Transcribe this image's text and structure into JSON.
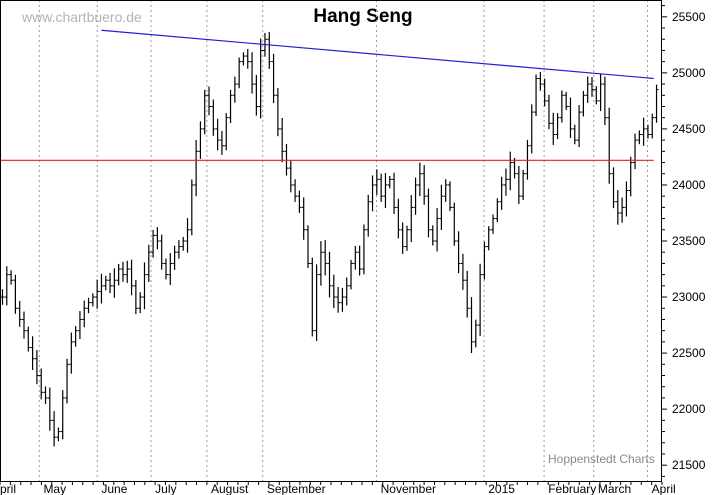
{
  "watermark": "www.chartbuero.de",
  "credit": "Hoppenstedt Charts",
  "colors": {
    "resistance": "#1f1fd6",
    "support": "#e02020",
    "bars": "#000000",
    "grid": "#9a9a9a"
  },
  "chart_data": {
    "type": "ohlc",
    "title": "Hang Seng",
    "ylim": [
      21350,
      25650
    ],
    "yticks": [
      21500,
      22000,
      22500,
      23000,
      23500,
      24000,
      24500,
      25000,
      25500
    ],
    "ytick_labels": [
      "21500",
      "22000",
      "22500",
      "23000",
      "23500",
      "24000",
      "24500",
      "25000",
      "25500"
    ],
    "xticks": [
      "pril",
      "May",
      "June",
      "July",
      "August",
      "September",
      "November",
      "2015",
      "February",
      "March",
      "April"
    ],
    "grid": true,
    "legend": "none",
    "ohlc_points": [
      [
        0,
        23000
      ],
      [
        1,
        23200
      ],
      [
        2,
        23150
      ],
      [
        3,
        22900
      ],
      [
        4,
        22800
      ],
      [
        5,
        22700
      ],
      [
        6,
        22550
      ],
      [
        7,
        22450
      ],
      [
        8,
        22300
      ],
      [
        9,
        22150
      ],
      [
        10,
        22100
      ],
      [
        11,
        21900
      ],
      [
        12,
        21750
      ],
      [
        13,
        21800
      ],
      [
        14,
        22100
      ],
      [
        15,
        22400
      ],
      [
        16,
        22600
      ],
      [
        17,
        22700
      ],
      [
        18,
        22800
      ],
      [
        19,
        22900
      ],
      [
        20,
        22950
      ],
      [
        21,
        23000
      ],
      [
        22,
        23050
      ],
      [
        23,
        23100
      ],
      [
        24,
        23150
      ],
      [
        25,
        23100
      ],
      [
        26,
        23150
      ],
      [
        27,
        23250
      ],
      [
        28,
        23200
      ],
      [
        29,
        23250
      ],
      [
        30,
        23100
      ],
      [
        31,
        22900
      ],
      [
        32,
        23000
      ],
      [
        33,
        23200
      ],
      [
        34,
        23400
      ],
      [
        35,
        23550
      ],
      [
        36,
        23500
      ],
      [
        37,
        23300
      ],
      [
        38,
        23200
      ],
      [
        39,
        23300
      ],
      [
        40,
        23400
      ],
      [
        41,
        23450
      ],
      [
        42,
        23500
      ],
      [
        43,
        23600
      ],
      [
        44,
        24000
      ],
      [
        45,
        24300
      ],
      [
        46,
        24500
      ],
      [
        47,
        24800
      ],
      [
        48,
        24700
      ],
      [
        49,
        24500
      ],
      [
        50,
        24400
      ],
      [
        51,
        24350
      ],
      [
        52,
        24600
      ],
      [
        53,
        24800
      ],
      [
        54,
        24900
      ],
      [
        55,
        25100
      ],
      [
        56,
        25150
      ],
      [
        57,
        25100
      ],
      [
        58,
        24900
      ],
      [
        59,
        24700
      ],
      [
        60,
        25200
      ],
      [
        61,
        25300
      ],
      [
        62,
        25100
      ],
      [
        63,
        24800
      ],
      [
        64,
        24500
      ],
      [
        65,
        24300
      ],
      [
        66,
        24150
      ],
      [
        67,
        24000
      ],
      [
        68,
        23900
      ],
      [
        69,
        23800
      ],
      [
        70,
        23600
      ],
      [
        71,
        23300
      ],
      [
        72,
        22700
      ],
      [
        73,
        23200
      ],
      [
        74,
        23400
      ],
      [
        75,
        23300
      ],
      [
        76,
        23100
      ],
      [
        77,
        23000
      ],
      [
        78,
        22950
      ],
      [
        79,
        23000
      ],
      [
        80,
        23100
      ],
      [
        81,
        23300
      ],
      [
        82,
        23400
      ],
      [
        83,
        23250
      ],
      [
        84,
        23600
      ],
      [
        85,
        23850
      ],
      [
        86,
        24000
      ],
      [
        87,
        24050
      ],
      [
        88,
        23900
      ],
      [
        89,
        24000
      ],
      [
        90,
        24050
      ],
      [
        91,
        23800
      ],
      [
        92,
        23600
      ],
      [
        93,
        23450
      ],
      [
        94,
        23600
      ],
      [
        95,
        23800
      ],
      [
        96,
        24000
      ],
      [
        97,
        24100
      ],
      [
        98,
        23900
      ],
      [
        99,
        23600
      ],
      [
        100,
        23500
      ],
      [
        101,
        23700
      ],
      [
        102,
        23900
      ],
      [
        103,
        24000
      ],
      [
        104,
        23800
      ],
      [
        105,
        23500
      ],
      [
        106,
        23300
      ],
      [
        107,
        23150
      ],
      [
        108,
        22900
      ],
      [
        109,
        22600
      ],
      [
        110,
        22750
      ],
      [
        111,
        23200
      ],
      [
        112,
        23450
      ],
      [
        113,
        23600
      ],
      [
        114,
        23700
      ],
      [
        115,
        23850
      ],
      [
        116,
        24000
      ],
      [
        117,
        24050
      ],
      [
        118,
        24200
      ],
      [
        119,
        24100
      ],
      [
        120,
        23900
      ],
      [
        121,
        24100
      ],
      [
        122,
        24350
      ],
      [
        123,
        24650
      ],
      [
        124,
        24950
      ],
      [
        125,
        24900
      ],
      [
        126,
        24750
      ],
      [
        127,
        24550
      ],
      [
        128,
        24450
      ],
      [
        129,
        24600
      ],
      [
        130,
        24800
      ],
      [
        131,
        24700
      ],
      [
        132,
        24500
      ],
      [
        133,
        24400
      ],
      [
        134,
        24650
      ],
      [
        135,
        24800
      ],
      [
        136,
        24900
      ],
      [
        137,
        24850
      ],
      [
        138,
        24750
      ],
      [
        139,
        24900
      ],
      [
        140,
        24600
      ],
      [
        141,
        24100
      ],
      [
        142,
        23850
      ],
      [
        143,
        23750
      ],
      [
        144,
        23800
      ],
      [
        145,
        23950
      ],
      [
        146,
        24200
      ],
      [
        147,
        24400
      ],
      [
        148,
        24450
      ],
      [
        149,
        24500
      ],
      [
        150,
        24450
      ],
      [
        151,
        24600
      ],
      [
        152,
        24850
      ]
    ],
    "x_positions": [
      0.5,
      3,
      5.5,
      8,
      10.5,
      13,
      15.5,
      18,
      20.5,
      23,
      25.5,
      28,
      30.5,
      33,
      35.5,
      38,
      40.5,
      43,
      45.5,
      48,
      50.5,
      53,
      55.5,
      58,
      60.5,
      63,
      65.5,
      68,
      70.5,
      73,
      75.5,
      78,
      80.5,
      83,
      85.5,
      88,
      90.5,
      93,
      95.5,
      98,
      100.5,
      103,
      105.5,
      108,
      110.5,
      113,
      115.5,
      118,
      120.5,
      123,
      125.5,
      128,
      130.5,
      133,
      135.5,
      138,
      140.5,
      143,
      145.5,
      148,
      150.5,
      153,
      155.5,
      158,
      160.5,
      163,
      165.5,
      168,
      170.5,
      173,
      175.5,
      178,
      180.5,
      183,
      185.5,
      188,
      190.5,
      193,
      195.5,
      198,
      200.5,
      203,
      205.5,
      208,
      210.5,
      213,
      215.5,
      218,
      220.5,
      223,
      225.5,
      228,
      230.5,
      233,
      235.5,
      238,
      240.5,
      243,
      245.5,
      248,
      250.5,
      253,
      255.5,
      258,
      260.5,
      263,
      265.5,
      268,
      270.5,
      273,
      275.5,
      278,
      280.5,
      283,
      285.5,
      288,
      290.5,
      293,
      295.5,
      298,
      300.5,
      303,
      305.5,
      308,
      310.5,
      313,
      315.5,
      318,
      320.5,
      323,
      325.5,
      328,
      330.5,
      333,
      335.5,
      338,
      340.5,
      343,
      345.5,
      348,
      350.5,
      353,
      355.5,
      358,
      360.5,
      363,
      365.5,
      368,
      370.5,
      373,
      375.5,
      378,
      380.5
    ],
    "lines": [
      {
        "name": "",
        "from": [
          24.5,
          25380
        ],
        "to": [
          158,
          24950
        ]
      },
      {
        "name": "",
        "from": [
          0,
          24220
        ],
        "to": [
          158,
          24220
        ]
      }
    ]
  }
}
